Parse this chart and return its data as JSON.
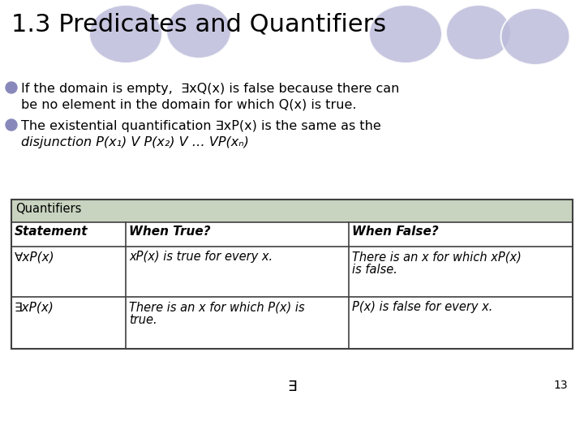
{
  "title": "1.3 Predicates and Quantifiers",
  "bg_color": "#FFFFFF",
  "title_color": "#000000",
  "title_fontsize": 22,
  "bullet_color": "#8888BB",
  "bullet1_line1": "If the domain is empty,  ∃xQ(x) is false because there can",
  "bullet1_line2": "be no element in the domain for which Q(x) is true.",
  "bullet2_line1": "The existential quantification ∃xP(x) is the same as the",
  "bullet2_line2": "disjunction P(x₁) V P(x₂) V … VP(xₙ)",
  "table_header_bg": "#C8D4C0",
  "table_header_text": "Quantifiers",
  "col_headers": [
    "Statement",
    "When True?",
    "When False?"
  ],
  "row1_col1": "∀xP(x)",
  "row1_col2": "xP(x) is true for every x.",
  "row1_col3a": "There is an x for which xP(x)",
  "row1_col3b": "is false.",
  "row2_col1": "∃xP(x)",
  "row2_col2a": "There is an x for which P(x) is",
  "row2_col2b": "true.",
  "row2_col3": "P(x) is false for every x.",
  "footer_symbol": "∃",
  "footer_page": "13",
  "ellipse_color": "#BCBCDB",
  "table_border_color": "#404040"
}
